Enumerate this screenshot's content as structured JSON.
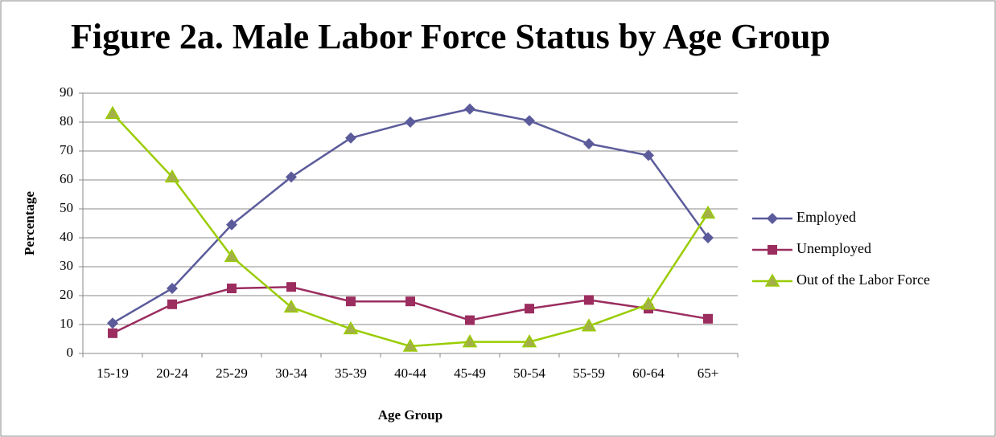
{
  "chart_data": {
    "type": "line",
    "title": "Figure 2a. Male Labor Force Status by Age Group",
    "x_label": "Age Group",
    "y_label": "Percentage",
    "categories": [
      "15-19",
      "20-24",
      "25-29",
      "30-34",
      "35-39",
      "40-44",
      "45-49",
      "50-54",
      "55-59",
      "60-64",
      "65+"
    ],
    "series": [
      {
        "name": "Employed",
        "color": "#5b5b9b",
        "marker": "diamond",
        "values": [
          10.5,
          22.5,
          44.5,
          61,
          74.5,
          80,
          84.5,
          80.5,
          72.5,
          68.5,
          40
        ]
      },
      {
        "name": "Unemployed",
        "color": "#9b2d5f",
        "marker": "square",
        "values": [
          7,
          17,
          22.5,
          23,
          18,
          18,
          11.5,
          15.5,
          18.5,
          15.5,
          12
        ]
      },
      {
        "name": "Out of the Labor Force",
        "color": "#99cc00",
        "marker": "triangle",
        "values": [
          83,
          61,
          33.5,
          16,
          8.5,
          2.5,
          4,
          4,
          9.5,
          17,
          48.5
        ]
      }
    ],
    "ylim": [
      0,
      90
    ],
    "yticks": [
      0,
      10,
      20,
      30,
      40,
      50,
      60,
      70,
      80,
      90
    ],
    "grid": true,
    "legend": "right"
  }
}
